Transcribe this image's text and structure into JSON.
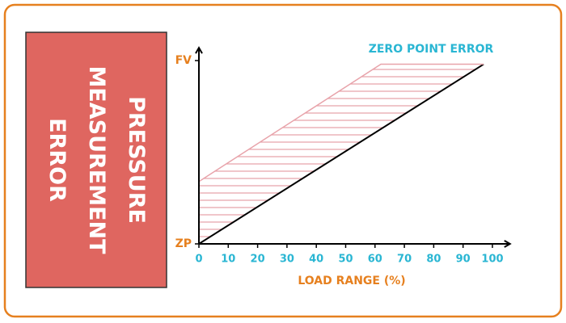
{
  "chart_data": {
    "type": "line",
    "title": "PRESSURE MEASUREMENT ERROR",
    "xlabel": "LOAD RANGE (%)",
    "annotation": "ZERO POINT ERROR",
    "xlim": [
      0,
      106
    ],
    "ylim": [
      0,
      107
    ],
    "xticks": [
      0,
      10,
      20,
      30,
      40,
      50,
      60,
      70,
      80,
      90,
      100
    ],
    "yticks": [
      {
        "value": 0,
        "label": "ZP"
      },
      {
        "value": 100,
        "label": "FV"
      }
    ],
    "series": [
      {
        "color": "#000000",
        "x": [
          0,
          97
        ],
        "values": [
          0,
          98
        ]
      },
      {
        "color": "#e8a3aa",
        "x": [
          0,
          62,
          97
        ],
        "values": [
          34,
          98,
          98
        ]
      }
    ],
    "hatch": true
  }
}
